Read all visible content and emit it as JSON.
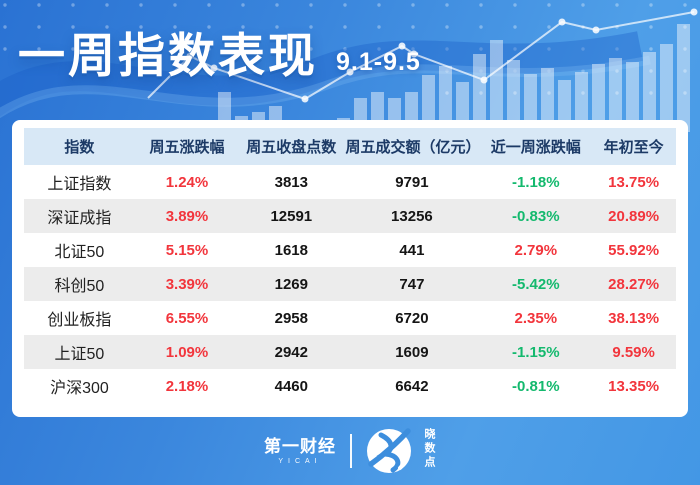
{
  "header": {
    "title": "一周指数表现",
    "date_range": "9.1-9.5"
  },
  "table": {
    "columns": [
      "指数",
      "周五涨跌幅",
      "周五收盘点数",
      "周五成交额（亿元）",
      "近一周涨跌幅",
      "年初至今"
    ],
    "colored_columns": [
      1,
      4,
      5
    ],
    "rows": [
      [
        "上证指数",
        "1.24%",
        "3813",
        "9791",
        "-1.18%",
        "13.75%"
      ],
      [
        "深证成指",
        "3.89%",
        "12591",
        "13256",
        "-0.83%",
        "20.89%"
      ],
      [
        "北证50",
        "5.15%",
        "1618",
        "441",
        "2.79%",
        "55.92%"
      ],
      [
        "科创50",
        "3.39%",
        "1269",
        "747",
        "-5.42%",
        "28.27%"
      ],
      [
        "创业板指",
        "6.55%",
        "2958",
        "6720",
        "2.35%",
        "38.13%"
      ],
      [
        "上证50",
        "1.09%",
        "2942",
        "1609",
        "-1.15%",
        "9.59%"
      ],
      [
        "沪深300",
        "2.18%",
        "4460",
        "6642",
        "-0.81%",
        "13.35%"
      ]
    ]
  },
  "footer": {
    "yicai_name": "第一财经",
    "yicai_sub": "YICAI",
    "xsd_name": "晓数点"
  },
  "colors": {
    "up": "#f2353c",
    "down": "#14b96e",
    "bg-blue": "#3d8edd",
    "table-header-bg": "#d8e8f6",
    "stripe": "#ececec"
  }
}
